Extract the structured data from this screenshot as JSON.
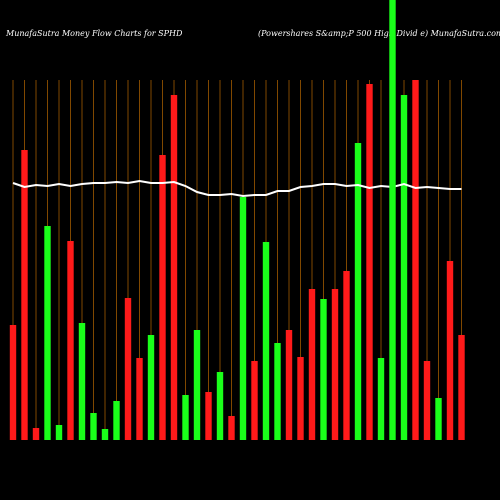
{
  "chart_data": {
    "type": "bar",
    "title": "MunafaSutra  Money Flow  Charts for SPHD",
    "subtitle": "(Powershares S&amp;P 500  High Divid e) MunafaSutra.com",
    "categories": [
      null,
      null,
      null,
      null,
      null,
      null,
      null,
      null,
      null,
      null,
      null,
      null,
      null,
      null,
      null,
      null,
      null,
      null,
      null,
      null,
      null,
      null,
      null,
      null,
      null,
      null,
      null,
      null,
      null,
      null,
      null,
      null,
      null,
      null,
      null,
      null,
      null,
      null,
      null,
      null
    ],
    "ylim": [
      0,
      440
    ],
    "series": [
      {
        "name": "money flow",
        "values": [
          115,
          290,
          12,
          214,
          15,
          199,
          117,
          27,
          11,
          39,
          142,
          82,
          105,
          285,
          345,
          45,
          110,
          48,
          68,
          24,
          243,
          79,
          198,
          97,
          110,
          83,
          151,
          141,
          151,
          169,
          297,
          356,
          82,
          445,
          345,
          360,
          79,
          42,
          179,
          105
        ],
        "colors": [
          "#ff1a1a",
          "#ff1a1a",
          "#ff1a1a",
          "#1aff1a",
          "#1aff1a",
          "#ff1a1a",
          "#1aff1a",
          "#1aff1a",
          "#1aff1a",
          "#1aff1a",
          "#ff1a1a",
          "#ff1a1a",
          "#1aff1a",
          "#ff1a1a",
          "#ff1a1a",
          "#1aff1a",
          "#1aff1a",
          "#ff1a1a",
          "#1aff1a",
          "#ff1a1a",
          "#1aff1a",
          "#ff1a1a",
          "#1aff1a",
          "#1aff1a",
          "#ff1a1a",
          "#ff1a1a",
          "#ff1a1a",
          "#1aff1a",
          "#ff1a1a",
          "#ff1a1a",
          "#1aff1a",
          "#ff1a1a",
          "#1aff1a",
          "#1aff1a",
          "#1aff1a",
          "#ff1a1a",
          "#ff1a1a",
          "#1aff1a",
          "#ff1a1a",
          "#ff1a1a"
        ]
      },
      {
        "name": "trend",
        "type": "line",
        "color": "#ffffff",
        "values": [
          257,
          253,
          255,
          254,
          256,
          254,
          256,
          257,
          257,
          258,
          257,
          259,
          257,
          257,
          258,
          254,
          248,
          245,
          245,
          246,
          244,
          245,
          245,
          249,
          249,
          253,
          254,
          256,
          256,
          254,
          255,
          252,
          254,
          253,
          256,
          252,
          253,
          252,
          251,
          251
        ]
      }
    ],
    "grid_color": "#a05a00"
  }
}
